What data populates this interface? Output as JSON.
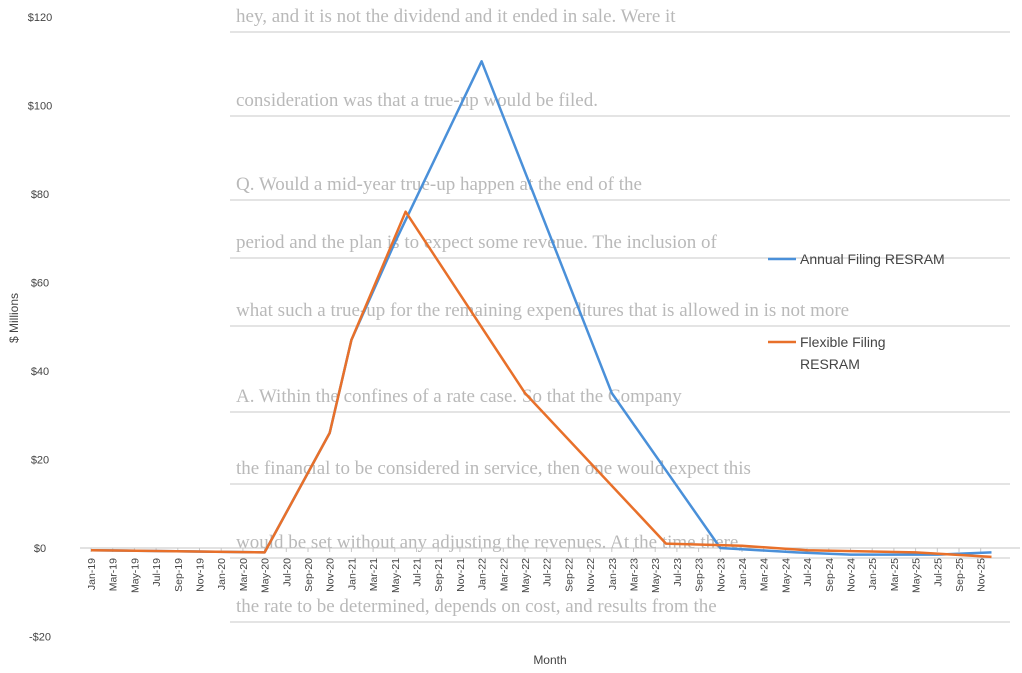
{
  "background_text": [
    "hey, and it is not the dividend and it ended in sale. Were it",
    "consideration was that a true-up would be filed.",
    "Q. Would a mid-year true-up happen at the end of the",
    "period and the plan is to expect some revenue. The inclusion of",
    "what such a true-up for the remaining expenditures that is allowed in is not more",
    "A. Within the confines of a rate case. So that the Company",
    "the financial to be considered in service, then one would expect this",
    "would be set without any adjusting the revenues. At the time there,",
    "the rate to be determined, depends on cost, and results from the"
  ],
  "chart_data": {
    "type": "line",
    "title": "",
    "xlabel": "Month",
    "ylabel": "$ Millions",
    "ylim": [
      -20,
      120
    ],
    "yticks": [
      -20,
      0,
      20,
      40,
      60,
      80,
      100,
      120
    ],
    "ytick_labels": [
      "-$20",
      "$0",
      "$20",
      "$40",
      "$60",
      "$80",
      "$100",
      "$120"
    ],
    "grid": false,
    "legend_position": "right",
    "categories": [
      "Jan-19",
      "Mar-19",
      "May-19",
      "Jul-19",
      "Sep-19",
      "Nov-19",
      "Jan-20",
      "Mar-20",
      "May-20",
      "Jul-20",
      "Sep-20",
      "Nov-20",
      "Jan-21",
      "Mar-21",
      "May-21",
      "Jul-21",
      "Sep-21",
      "Nov-21",
      "Jan-22",
      "Mar-22",
      "May-22",
      "Jul-22",
      "Sep-22",
      "Nov-22",
      "Jan-23",
      "Mar-23",
      "May-23",
      "Jul-23",
      "Sep-23",
      "Nov-23",
      "Jan-24",
      "Mar-24",
      "May-24",
      "Jul-24",
      "Sep-24",
      "Nov-24",
      "Jan-25",
      "Mar-25",
      "May-25",
      "Jul-25",
      "Sep-25",
      "Nov-25"
    ],
    "series": [
      {
        "name": "Annual Filing RESRAM",
        "color": "#4a90d9",
        "points": [
          {
            "x": "Jan-19",
            "y": -0.5
          },
          {
            "x": "May-20",
            "y": -1
          },
          {
            "x": "Nov-20",
            "y": 26
          },
          {
            "x": "Jan-21",
            "y": 47
          },
          {
            "x": "May-21",
            "y": 69
          },
          {
            "x": "Jan-22",
            "y": 110
          },
          {
            "x": "Jan-23",
            "y": 35
          },
          {
            "x": "Nov-23",
            "y": 0
          },
          {
            "x": "Jun-24",
            "y": -1
          },
          {
            "x": "Nov-24",
            "y": -1.5
          },
          {
            "x": "Jul-25",
            "y": -1.5
          },
          {
            "x": "Dec-25",
            "y": -1
          }
        ]
      },
      {
        "name": "Flexible Filing RESRAM",
        "color": "#e8702a",
        "points": [
          {
            "x": "Jan-19",
            "y": -0.5
          },
          {
            "x": "May-20",
            "y": -1
          },
          {
            "x": "Nov-20",
            "y": 26
          },
          {
            "x": "Jan-21",
            "y": 47
          },
          {
            "x": "Jun-21",
            "y": 76
          },
          {
            "x": "May-22",
            "y": 35
          },
          {
            "x": "Jun-23",
            "y": 1
          },
          {
            "x": "Jan-24",
            "y": 0.5
          },
          {
            "x": "Jul-24",
            "y": -0.5
          },
          {
            "x": "May-25",
            "y": -1
          },
          {
            "x": "Dec-25",
            "y": -2
          }
        ]
      }
    ]
  }
}
